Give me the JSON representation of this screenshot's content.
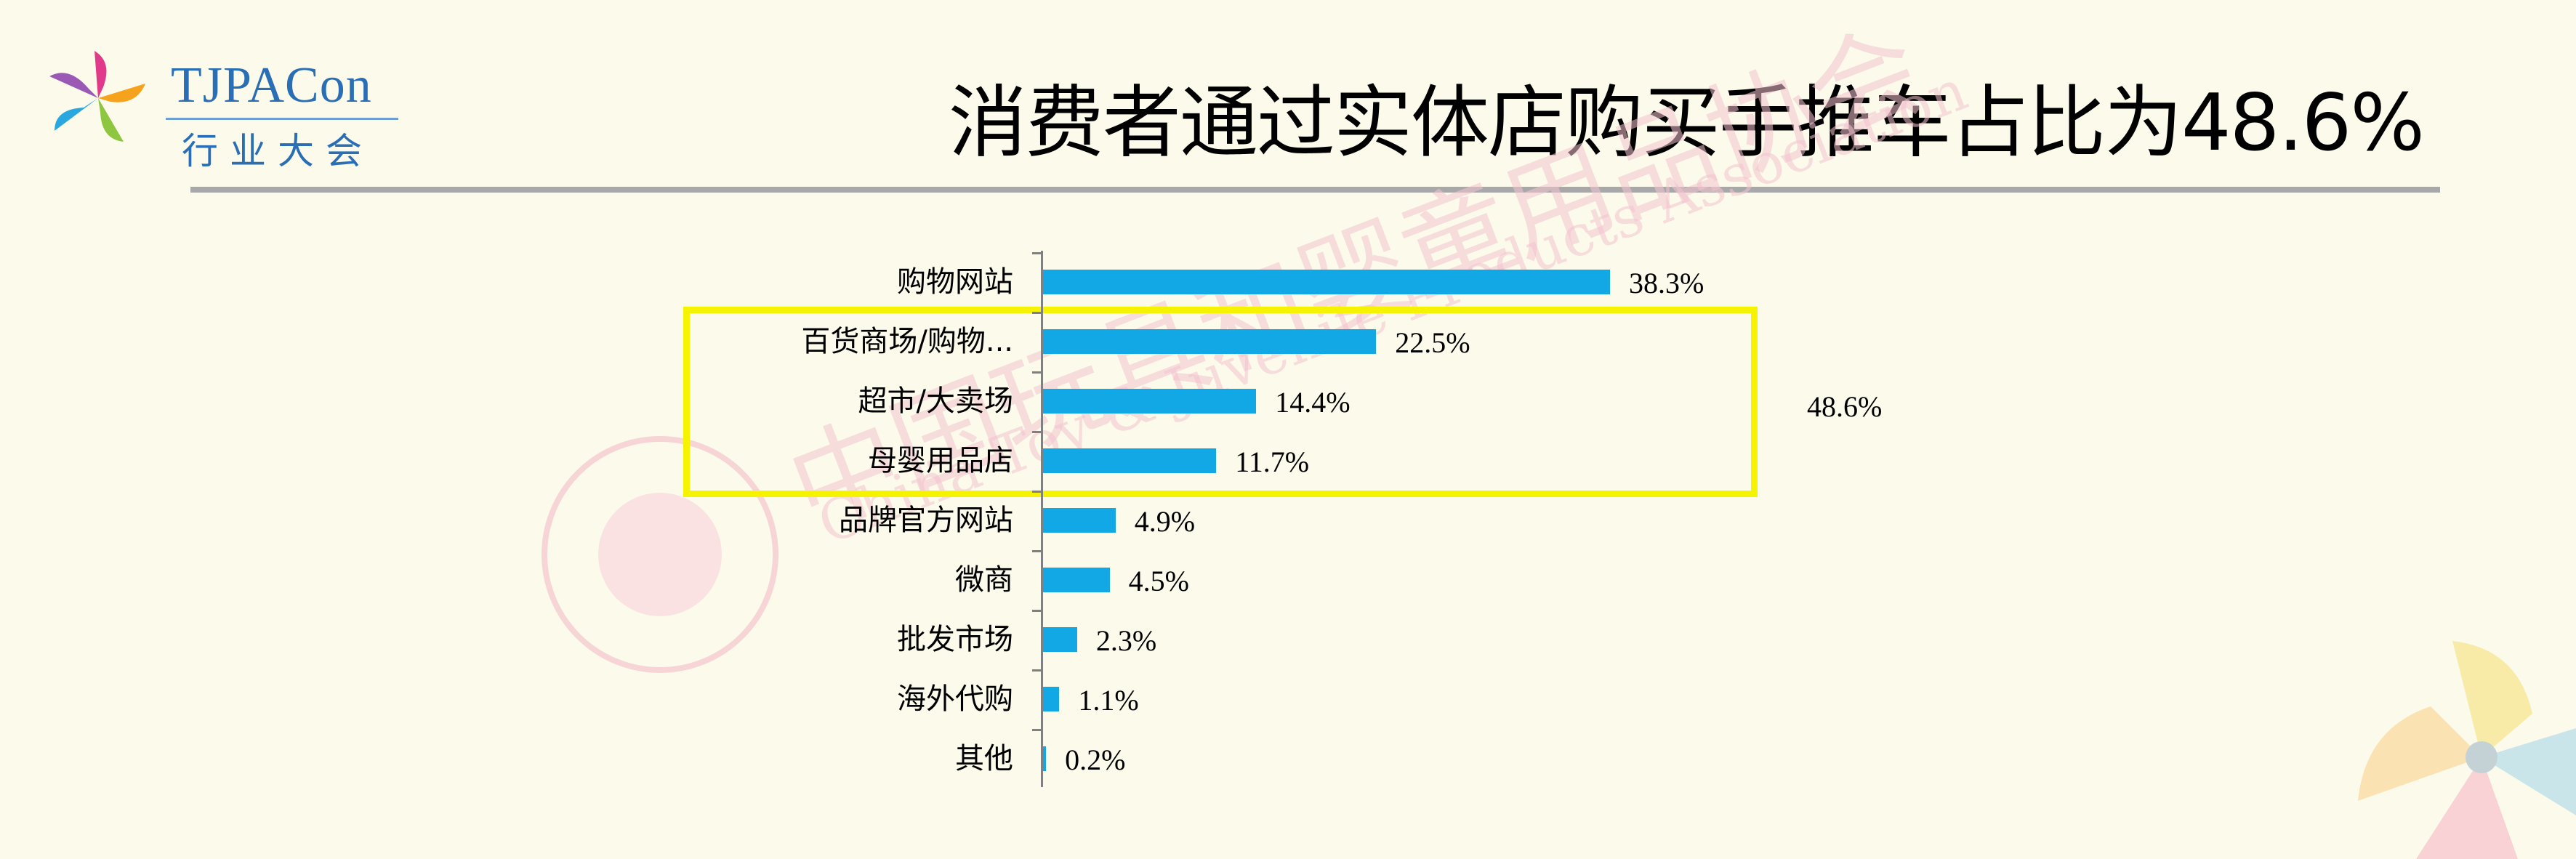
{
  "logo": {
    "name": "TJPACon",
    "subtitle": "行业大会"
  },
  "title": "消费者通过实体店购买手推车占比为48.6%",
  "watermark": {
    "cn": "中国玩具和婴童用品协会",
    "en": "China Toy & Juvenile Products Association"
  },
  "colors": {
    "bar": "#12a8e6",
    "highlight": "#f5f300",
    "background": "#fcfbeb"
  },
  "chart_data": {
    "type": "bar",
    "orientation": "horizontal",
    "categories": [
      "购物网站",
      "百货商场/购物...",
      "超市/大卖场",
      "母婴用品店",
      "品牌官方网站",
      "微商",
      "批发市场",
      "海外代购",
      "其他"
    ],
    "values": [
      38.3,
      22.5,
      14.4,
      11.7,
      4.9,
      4.5,
      2.3,
      1.1,
      0.2
    ],
    "value_labels": [
      "38.3%",
      "22.5%",
      "14.4%",
      "11.7%",
      "4.9%",
      "4.5%",
      "2.3%",
      "1.1%",
      "0.2%"
    ],
    "highlight": {
      "categories": [
        "百货商场/购物...",
        "超市/大卖场",
        "母婴用品店"
      ],
      "label": "48.6%"
    },
    "grid": false,
    "legend": "none"
  }
}
